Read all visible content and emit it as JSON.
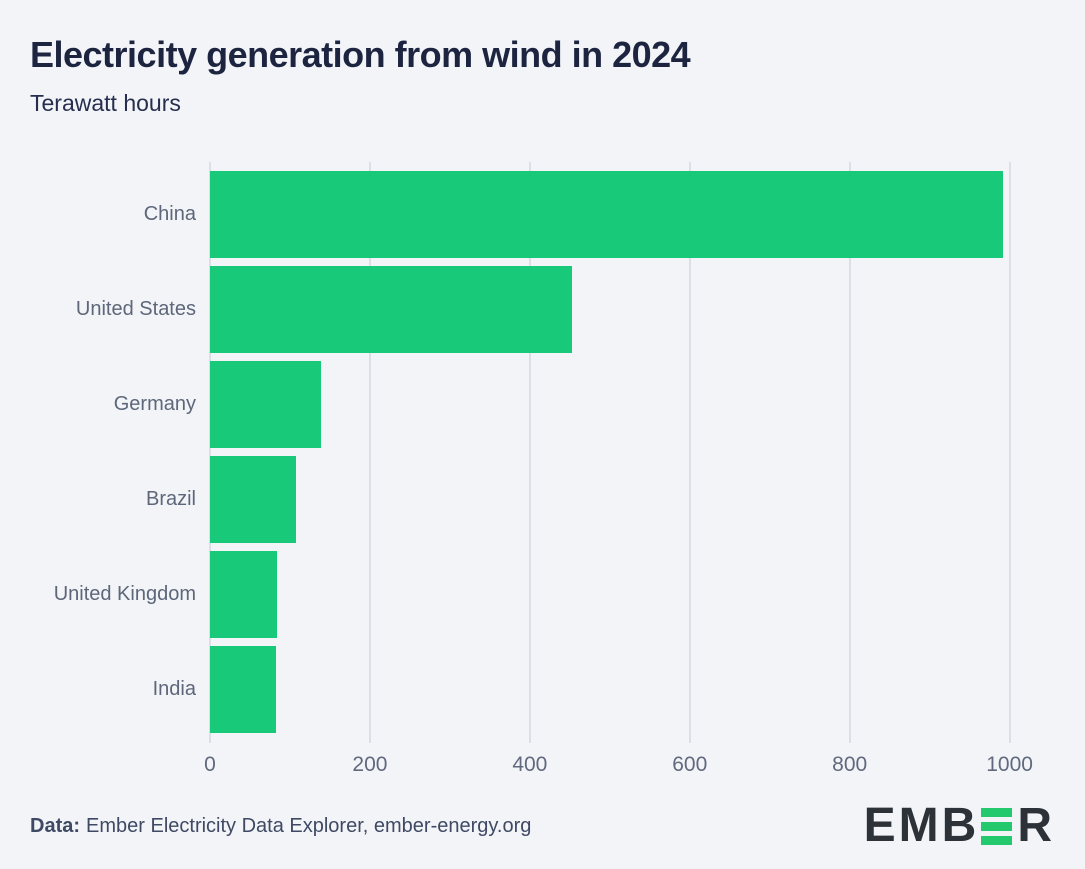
{
  "header": {
    "title": "Electricity generation from wind in 2024",
    "subtitle": "Terawatt hours"
  },
  "chart_data": {
    "type": "bar",
    "orientation": "horizontal",
    "title": "Electricity generation from wind in 2024",
    "unit_label": "Terawatt hours",
    "categories": [
      "China",
      "United States",
      "Germany",
      "Brazil",
      "United Kingdom",
      "India"
    ],
    "values": [
      992,
      453,
      139,
      108,
      84,
      82
    ],
    "ticks": [
      0,
      200,
      400,
      600,
      800,
      1000
    ],
    "xlim": [
      0,
      1038
    ],
    "grid": "vertical-only",
    "legend": "none",
    "bar_color": "#17c978"
  },
  "footer": {
    "source_prefix": "Data:",
    "source_text": "Ember Electricity Data Explorer, ember-energy.org"
  },
  "logo": {
    "name": "EMBER",
    "text_left": "EMB",
    "text_right": "R"
  },
  "colors": {
    "background": "#f2f4f8",
    "bar": "#17c978",
    "title_text": "#1d2440",
    "axis_text": "#5d6779",
    "gridline": "#dcdfe6",
    "footer_text": "#3f4963",
    "logo_dark": "#2d3238",
    "logo_green": "#25c96d"
  }
}
